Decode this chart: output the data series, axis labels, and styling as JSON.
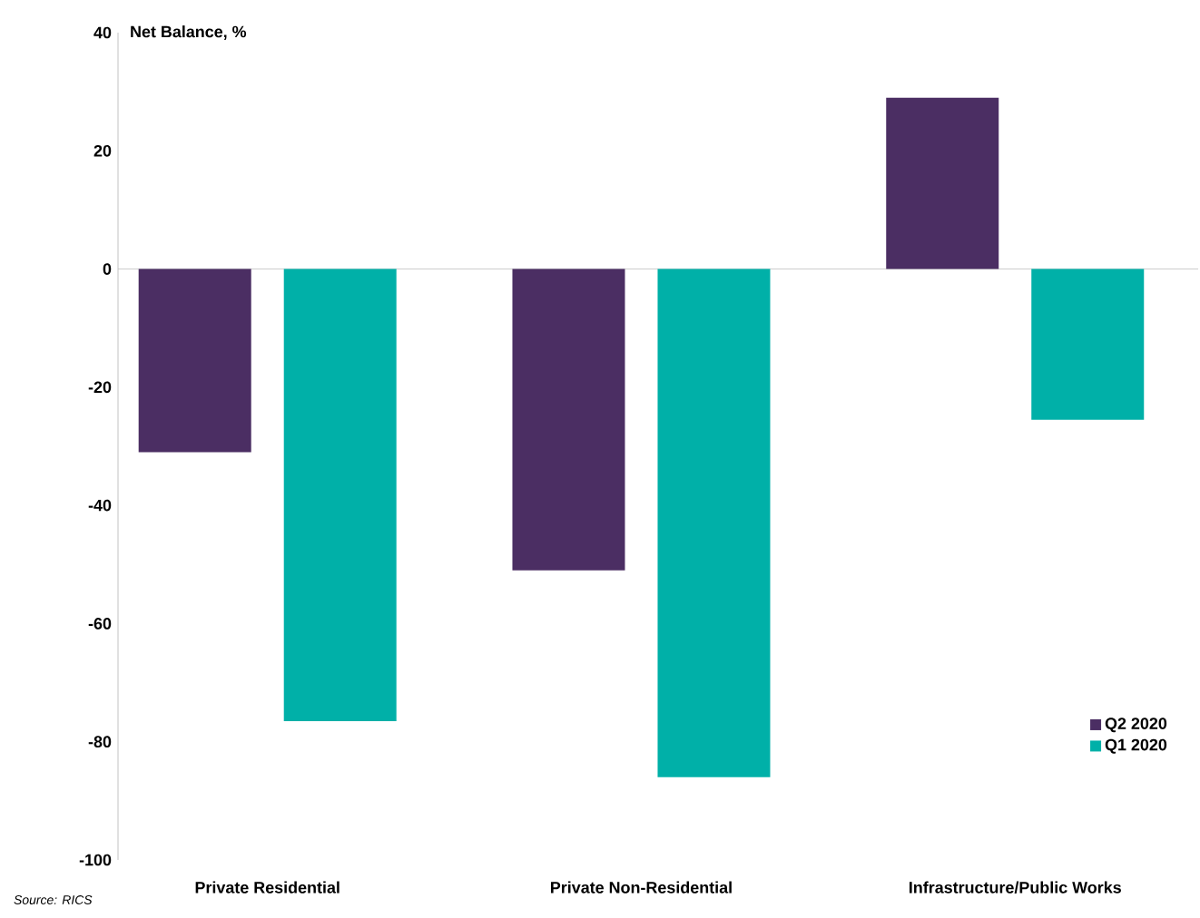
{
  "chart_data": {
    "type": "bar",
    "ylabel": "Net Balance, %",
    "categories": [
      "Private Residential",
      "Private Non-Residential",
      "Infrastructure/Public Works"
    ],
    "series": [
      {
        "name": "Q2 2020",
        "color": "#4b2e63",
        "values": [
          -31,
          -51,
          29
        ]
      },
      {
        "name": "Q1 2020",
        "color": "#00b0a8",
        "values": [
          -76.5,
          -86,
          -25.5
        ]
      }
    ],
    "ylim": [
      -100,
      40
    ],
    "yticks": [
      -100,
      -80,
      -60,
      -40,
      -20,
      0,
      20,
      40
    ],
    "legend": "bottom right",
    "ref_lines": [
      {
        "axis": "y",
        "value": 0,
        "color": "#bfbfbf"
      }
    ],
    "annotations": [
      "Source: RICS"
    ]
  }
}
